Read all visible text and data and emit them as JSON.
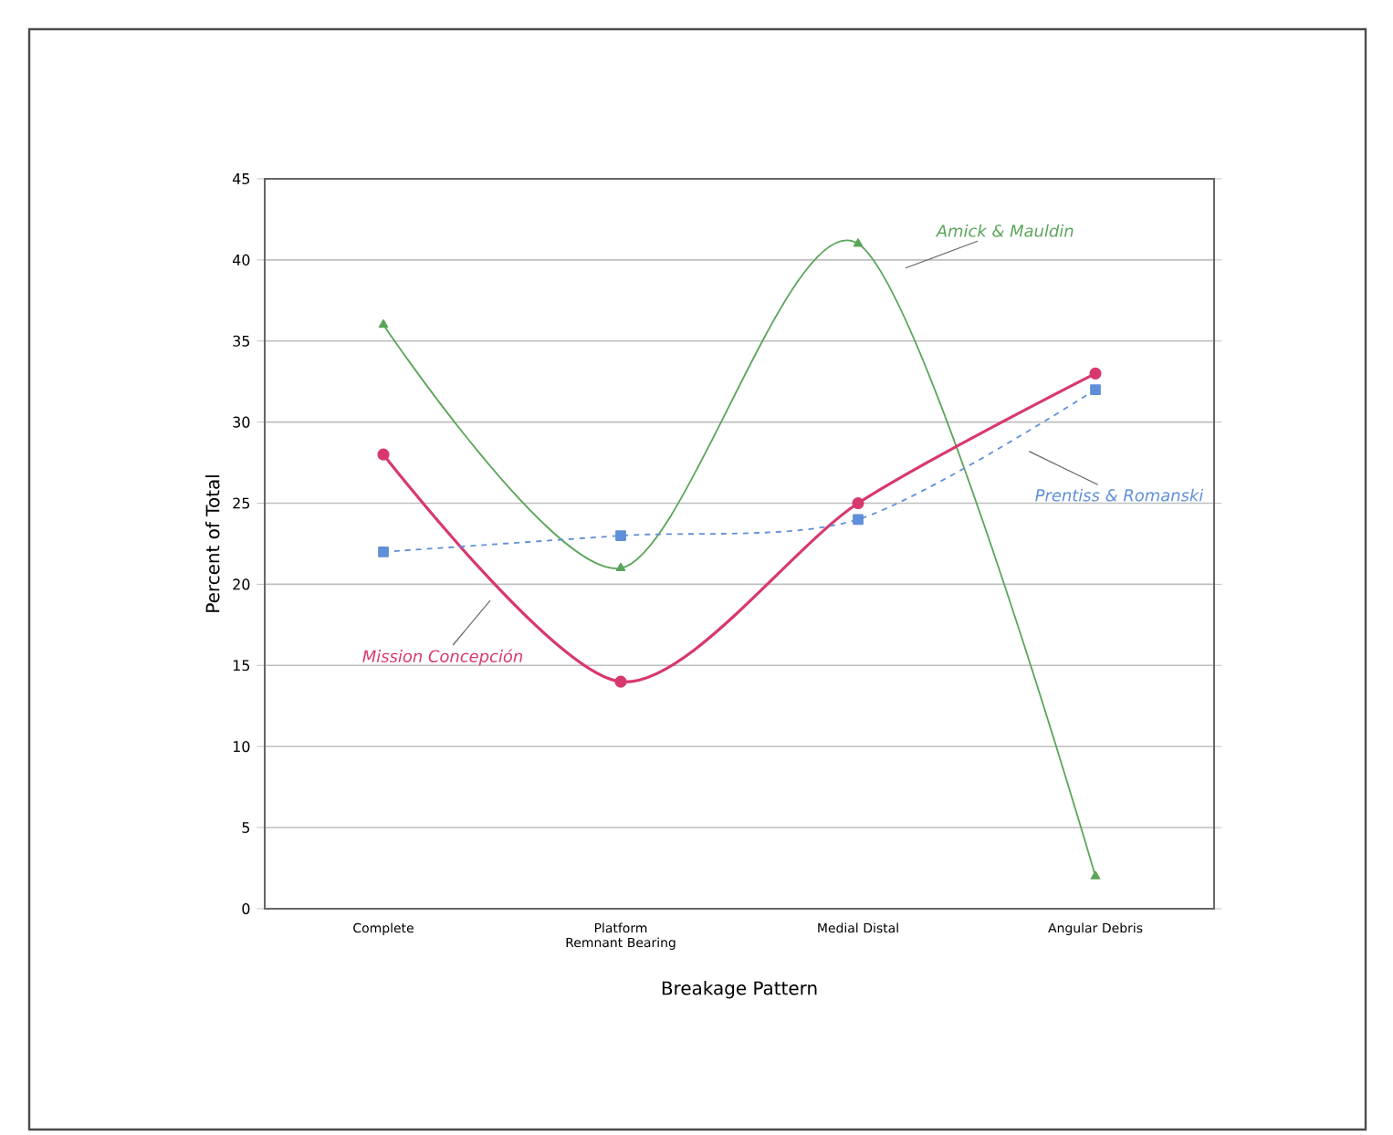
{
  "chart_data": {
    "type": "line",
    "xlabel": "Breakage Pattern",
    "ylabel": "Percent of Total",
    "categories": [
      "Complete",
      "Platform Remnant Bearing",
      "Medial Distal",
      "Angular Debris"
    ],
    "series": [
      {
        "name": "Amick & Mauldin",
        "color": "#5aa55a",
        "values": [
          36,
          21,
          41,
          2
        ],
        "marker": "triangle",
        "line_style": "solid"
      },
      {
        "name": "Mission Concepción",
        "color": "#d8386e",
        "values": [
          28,
          14,
          25,
          33
        ],
        "marker": "circle",
        "line_style": "solid"
      },
      {
        "name": "Prentiss & Romanski",
        "color": "#5f8fd8",
        "values": [
          22,
          23,
          24,
          32
        ],
        "marker": "square",
        "line_style": "dashed"
      }
    ],
    "ylim": [
      0,
      45
    ],
    "yticks": [
      0,
      5,
      10,
      15,
      20,
      25,
      30,
      35,
      40,
      45
    ],
    "grid": "y"
  }
}
